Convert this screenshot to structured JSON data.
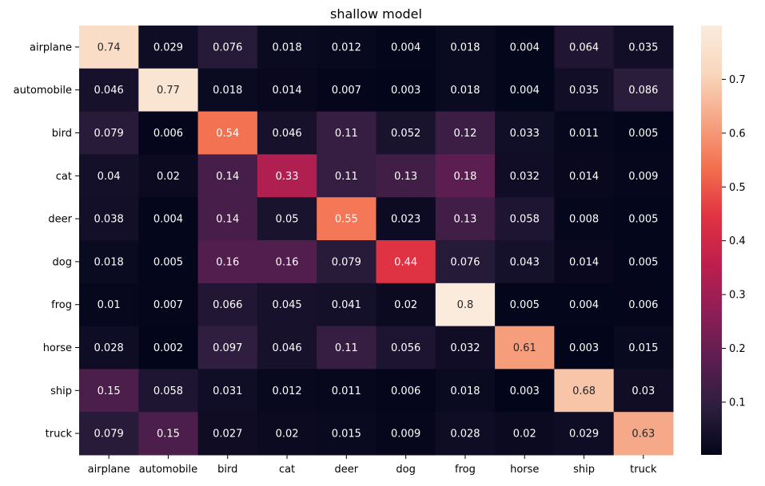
{
  "chart_data": {
    "type": "heatmap",
    "title": "shallow model",
    "xlabel": "",
    "ylabel": "",
    "x_categories": [
      "airplane",
      "automobile",
      "bird",
      "cat",
      "deer",
      "dog",
      "frog",
      "horse",
      "ship",
      "truck"
    ],
    "y_categories": [
      "airplane",
      "automobile",
      "bird",
      "cat",
      "deer",
      "dog",
      "frog",
      "horse",
      "ship",
      "truck"
    ],
    "values": [
      [
        "0.74",
        "0.029",
        "0.076",
        "0.018",
        "0.012",
        "0.004",
        "0.018",
        "0.004",
        "0.064",
        "0.035"
      ],
      [
        "0.046",
        "0.77",
        "0.018",
        "0.014",
        "0.007",
        "0.003",
        "0.018",
        "0.004",
        "0.035",
        "0.086"
      ],
      [
        "0.079",
        "0.006",
        "0.54",
        "0.046",
        "0.11",
        "0.052",
        "0.12",
        "0.033",
        "0.011",
        "0.005"
      ],
      [
        "0.04",
        "0.02",
        "0.14",
        "0.33",
        "0.11",
        "0.13",
        "0.18",
        "0.032",
        "0.014",
        "0.009"
      ],
      [
        "0.038",
        "0.004",
        "0.14",
        "0.05",
        "0.55",
        "0.023",
        "0.13",
        "0.058",
        "0.008",
        "0.005"
      ],
      [
        "0.018",
        "0.005",
        "0.16",
        "0.16",
        "0.079",
        "0.44",
        "0.076",
        "0.043",
        "0.014",
        "0.005"
      ],
      [
        "0.01",
        "0.007",
        "0.066",
        "0.045",
        "0.041",
        "0.02",
        "0.8",
        "0.005",
        "0.004",
        "0.006"
      ],
      [
        "0.028",
        "0.002",
        "0.097",
        "0.046",
        "0.11",
        "0.056",
        "0.032",
        "0.61",
        "0.003",
        "0.015"
      ],
      [
        "0.15",
        "0.058",
        "0.031",
        "0.012",
        "0.011",
        "0.006",
        "0.018",
        "0.003",
        "0.68",
        "0.03"
      ],
      [
        "0.079",
        "0.15",
        "0.027",
        "0.02",
        "0.015",
        "0.009",
        "0.028",
        "0.02",
        "0.029",
        "0.63"
      ]
    ],
    "colorbar": {
      "min": 0.002,
      "max": 0.8,
      "ticks": [
        "0.1",
        "0.2",
        "0.3",
        "0.4",
        "0.5",
        "0.6",
        "0.7"
      ]
    },
    "colormap": [
      "#03051a",
      "#2c1e3e",
      "#5c1e51",
      "#8f1e56",
      "#bd1f4d",
      "#e13342",
      "#f36e4e",
      "#f6a583",
      "#fad7bd",
      "#faebdd"
    ],
    "grid": false,
    "legend": "colorbar-right"
  }
}
